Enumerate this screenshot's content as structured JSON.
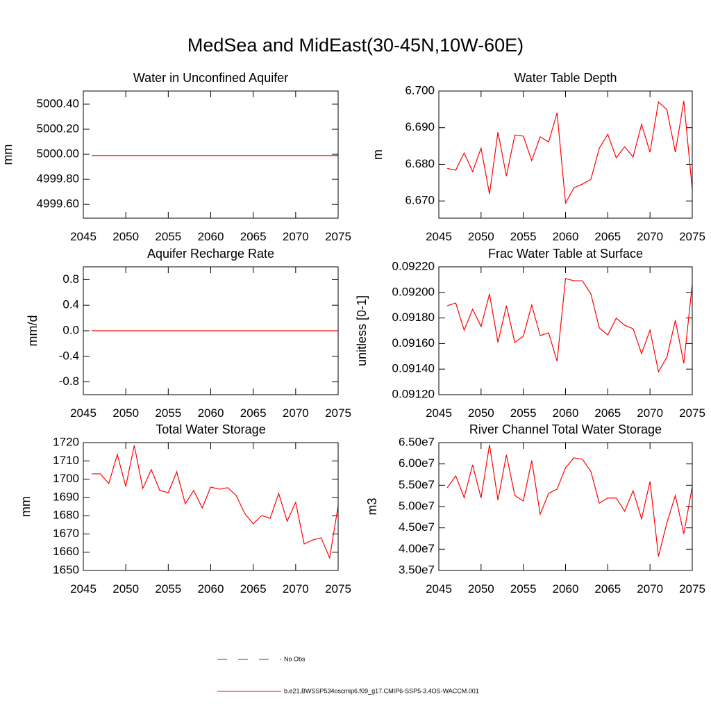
{
  "title": "MedSea and MidEast(30-45N,10W-60E)",
  "legend": [
    {
      "name": "No Obs",
      "color": "#3333cc",
      "dashed": true
    },
    {
      "name": "b.e21.BWSSP534oscmip6.f09_g17.CMIP6-SSP5-3.4OS-WACCM.001",
      "color": "#ff0000",
      "dashed": false
    }
  ],
  "chart_data": [
    {
      "type": "line",
      "title": "Water in Unconfined Aquifer",
      "ylabel": "mm",
      "x": [
        2046,
        2047,
        2048,
        2049,
        2050,
        2051,
        2052,
        2053,
        2054,
        2055,
        2056,
        2057,
        2058,
        2059,
        2060,
        2061,
        2062,
        2063,
        2064,
        2065,
        2066,
        2067,
        2068,
        2069,
        2070,
        2071,
        2072,
        2073,
        2074,
        2075
      ],
      "series": [
        {
          "color": "#ff0000",
          "values": [
            4999.99,
            4999.99,
            4999.99,
            4999.99,
            4999.99,
            4999.99,
            4999.99,
            4999.99,
            4999.99,
            4999.99,
            4999.99,
            4999.99,
            4999.99,
            4999.99,
            4999.99,
            4999.99,
            4999.99,
            4999.99,
            4999.99,
            4999.99,
            4999.99,
            4999.99,
            4999.99,
            4999.99,
            4999.99,
            4999.99,
            4999.99,
            4999.99,
            4999.99,
            4999.99
          ]
        }
      ],
      "xlim": [
        2045,
        2075
      ],
      "xticks": [
        2045,
        2050,
        2055,
        2060,
        2065,
        2070,
        2075
      ],
      "ylim": [
        4999.49,
        5000.505
      ],
      "yticks": [
        {
          "value": 4999.6,
          "label": "4999.60"
        },
        {
          "value": 4999.8,
          "label": "4999.80"
        },
        {
          "value": 5000.0,
          "label": "5000.00"
        },
        {
          "value": 5000.2,
          "label": "5000.20"
        },
        {
          "value": 5000.4,
          "label": "5000.40"
        }
      ]
    },
    {
      "type": "line",
      "title": "Water Table Depth",
      "ylabel": "m",
      "x": [
        2046,
        2047,
        2048,
        2049,
        2050,
        2051,
        2052,
        2053,
        2054,
        2055,
        2056,
        2057,
        2058,
        2059,
        2060,
        2061,
        2062,
        2063,
        2064,
        2065,
        2066,
        2067,
        2068,
        2069,
        2070,
        2071,
        2072,
        2073,
        2074,
        2075
      ],
      "series": [
        {
          "color": "#ff0000",
          "values": [
            6.6789,
            6.6784,
            6.6831,
            6.678,
            6.6844,
            6.6719,
            6.6888,
            6.6768,
            6.688,
            6.6877,
            6.681,
            6.6875,
            6.6861,
            6.6941,
            6.6694,
            6.6736,
            6.6746,
            6.6759,
            6.6844,
            6.6882,
            6.6818,
            6.6848,
            6.682,
            6.6909,
            6.6833,
            6.697,
            6.6949,
            6.6833,
            6.6973,
            6.6732
          ]
        }
      ],
      "xlim": [
        2045,
        2075
      ],
      "xticks": [
        2045,
        2050,
        2055,
        2060,
        2065,
        2070,
        2075
      ],
      "ylim": [
        6.6653,
        6.7
      ],
      "yticks": [
        {
          "value": 6.67,
          "label": "6.670"
        },
        {
          "value": 6.68,
          "label": "6.680"
        },
        {
          "value": 6.69,
          "label": "6.690"
        },
        {
          "value": 6.7,
          "label": "6.700"
        }
      ]
    },
    {
      "type": "line",
      "title": "Aquifer Recharge Rate",
      "ylabel": "mm/d",
      "x": [
        2046,
        2047,
        2048,
        2049,
        2050,
        2051,
        2052,
        2053,
        2054,
        2055,
        2056,
        2057,
        2058,
        2059,
        2060,
        2061,
        2062,
        2063,
        2064,
        2065,
        2066,
        2067,
        2068,
        2069,
        2070,
        2071,
        2072,
        2073,
        2074,
        2075
      ],
      "series": [
        {
          "color": "#ff0000",
          "values": [
            0,
            0,
            0,
            0,
            0,
            0,
            0,
            0,
            0,
            0,
            0,
            0,
            0,
            0,
            0,
            0,
            0,
            0,
            0,
            0,
            0,
            0,
            0,
            0,
            0,
            0,
            0,
            0,
            0,
            0
          ]
        }
      ],
      "xlim": [
        2045,
        2075
      ],
      "xticks": [
        2045,
        2050,
        2055,
        2060,
        2065,
        2070,
        2075
      ],
      "ylim": [
        -1,
        1
      ],
      "yticks": [
        -0.8,
        -0.4,
        {
          "value": 0,
          "label": "0.0"
        },
        0.4,
        0.8
      ]
    },
    {
      "type": "line",
      "title": "Frac Water Table at Surface",
      "ylabel": "unitless [0-1]",
      "x": [
        2046,
        2047,
        2048,
        2049,
        2050,
        2051,
        2052,
        2053,
        2054,
        2055,
        2056,
        2057,
        2058,
        2059,
        2060,
        2061,
        2062,
        2063,
        2064,
        2065,
        2066,
        2067,
        2068,
        2069,
        2070,
        2071,
        2072,
        2073,
        2074,
        2075
      ],
      "series": [
        {
          "color": "#ff0000",
          "values": [
            0.091896,
            0.091917,
            0.091705,
            0.091868,
            0.091733,
            0.091988,
            0.091608,
            0.091896,
            0.091608,
            0.091657,
            0.091901,
            0.091662,
            0.091684,
            0.091461,
            0.092108,
            0.092091,
            0.092091,
            0.091988,
            0.091722,
            0.091667,
            0.091798,
            0.091743,
            0.091716,
            0.091521,
            0.091705,
            0.091379,
            0.091493,
            0.091782,
            0.091445,
            0.092064
          ]
        }
      ],
      "xlim": [
        2045,
        2075
      ],
      "xticks": [
        2045,
        2050,
        2055,
        2060,
        2065,
        2070,
        2075
      ],
      "ylim": [
        0.0912,
        0.0922
      ],
      "yticks": [
        {
          "value": 0.0912,
          "label": "0.09120"
        },
        {
          "value": 0.0914,
          "label": "0.09140"
        },
        {
          "value": 0.0916,
          "label": "0.09160"
        },
        {
          "value": 0.0918,
          "label": "0.09180"
        },
        {
          "value": 0.092,
          "label": "0.09200"
        },
        {
          "value": 0.0922,
          "label": "0.09220"
        }
      ]
    },
    {
      "type": "line",
      "title": "Total Water Storage",
      "ylabel": "mm",
      "x": [
        2046,
        2047,
        2048,
        2049,
        2050,
        2051,
        2052,
        2053,
        2054,
        2055,
        2056,
        2057,
        2058,
        2059,
        2060,
        2061,
        2062,
        2063,
        2064,
        2065,
        2066,
        2067,
        2068,
        2069,
        2070,
        2071,
        2072,
        2073,
        2074,
        2075
      ],
      "series": [
        {
          "color": "#ff0000",
          "values": [
            1702.9,
            1702.9,
            1697.6,
            1713.5,
            1696.0,
            1718.5,
            1694.9,
            1705.2,
            1693.8,
            1692.6,
            1704.0,
            1686.5,
            1693.8,
            1684.2,
            1695.7,
            1694.5,
            1695.3,
            1691.1,
            1681.2,
            1675.5,
            1680.1,
            1678.5,
            1692.2,
            1677.0,
            1687.3,
            1664.5,
            1666.7,
            1667.9,
            1656.9,
            1685.4
          ]
        }
      ],
      "xlim": [
        2045,
        2075
      ],
      "xticks": [
        2045,
        2050,
        2055,
        2060,
        2065,
        2070,
        2075
      ],
      "ylim": [
        1650,
        1720
      ],
      "yticks": [
        1650,
        1660,
        1670,
        1680,
        1690,
        1700,
        1710,
        1720
      ]
    },
    {
      "type": "line",
      "title": "River Channel Total Water Storage",
      "ylabel": "m3",
      "x": [
        2046,
        2047,
        2048,
        2049,
        2050,
        2051,
        2052,
        2053,
        2054,
        2055,
        2056,
        2057,
        2058,
        2059,
        2060,
        2061,
        2062,
        2063,
        2064,
        2065,
        2066,
        2067,
        2068,
        2069,
        2070,
        2071,
        2072,
        2073,
        2074,
        2075
      ],
      "series": [
        {
          "color": "#ff0000",
          "values": [
            54400000,
            57200000,
            52100000,
            59800000,
            52000000,
            64500000,
            51500000,
            62100000,
            52600000,
            51300000,
            60800000,
            48200000,
            53100000,
            54100000,
            59100000,
            61400000,
            61100000,
            58200000,
            50800000,
            52000000,
            52000000,
            48900000,
            53700000,
            47100000,
            55900000,
            38300000,
            46200000,
            52600000,
            43600000,
            54700000
          ]
        }
      ],
      "xlim": [
        2045,
        2075
      ],
      "xticks": [
        2045,
        2050,
        2055,
        2060,
        2065,
        2070,
        2075
      ],
      "ylim": [
        35000000,
        65000000
      ],
      "yticks": [
        {
          "value": 35000000,
          "label": "3.50e7"
        },
        {
          "value": 40000000,
          "label": "4.00e7"
        },
        {
          "value": 45000000,
          "label": "4.50e7"
        },
        {
          "value": 50000000,
          "label": "5.00e7"
        },
        {
          "value": 55000000,
          "label": "5.50e7"
        },
        {
          "value": 60000000,
          "label": "6.00e7"
        },
        {
          "value": 65000000,
          "label": "6.50e7"
        }
      ]
    }
  ]
}
